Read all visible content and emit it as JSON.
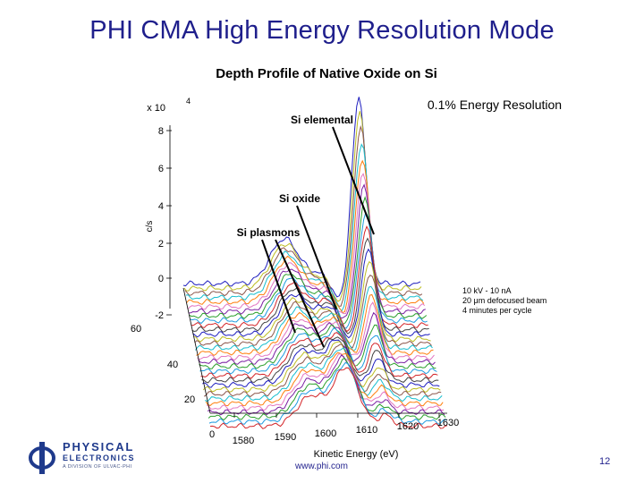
{
  "slide": {
    "title": "PHI CMA High Energy Resolution Mode",
    "footer_url": "www.phi.com",
    "page_number": "12"
  },
  "logo": {
    "line1": "PHYSICAL",
    "line2": "ELECTRONICS",
    "line3": "A DIVISION OF ULVAC-PHI",
    "color": "#1f3a8c"
  },
  "chart_data": {
    "type": "surface-waterfall",
    "title": "Depth Profile of Native Oxide on Si",
    "zlabel": "c/s",
    "z_multiplier": "x 10",
    "z_exponent": "4",
    "zticks": [
      "8",
      "6",
      "4",
      "2",
      "0",
      "-2"
    ],
    "xlabel": "Kinetic Energy (eV)",
    "xticks": [
      "1580",
      "1590",
      "1600",
      "1610",
      "1620",
      "1630"
    ],
    "cycle_ticks": [
      "60",
      "40",
      "20",
      "0"
    ],
    "annotations": {
      "resolution": "0.1% Energy Resolution",
      "si_elemental": "Si elemental",
      "si_oxide": "Si oxide",
      "si_plasmons": "Si plasmons",
      "conditions": [
        "10 kV - 10 nA",
        "20 μm defocused beam",
        "4 minutes per cycle"
      ]
    },
    "peaks": {
      "si_elemental_ev": 1616,
      "si_oxide_ev": 1607,
      "si_plasmons_ev": 1599
    },
    "colors": [
      "#d4262a",
      "#1e9be0",
      "#2ca02c",
      "#7b1fa2",
      "#e377c2",
      "#ff7f0e",
      "#17becf",
      "#8c564b",
      "#bcbd22",
      "#1f1fbf",
      "#444444"
    ]
  }
}
